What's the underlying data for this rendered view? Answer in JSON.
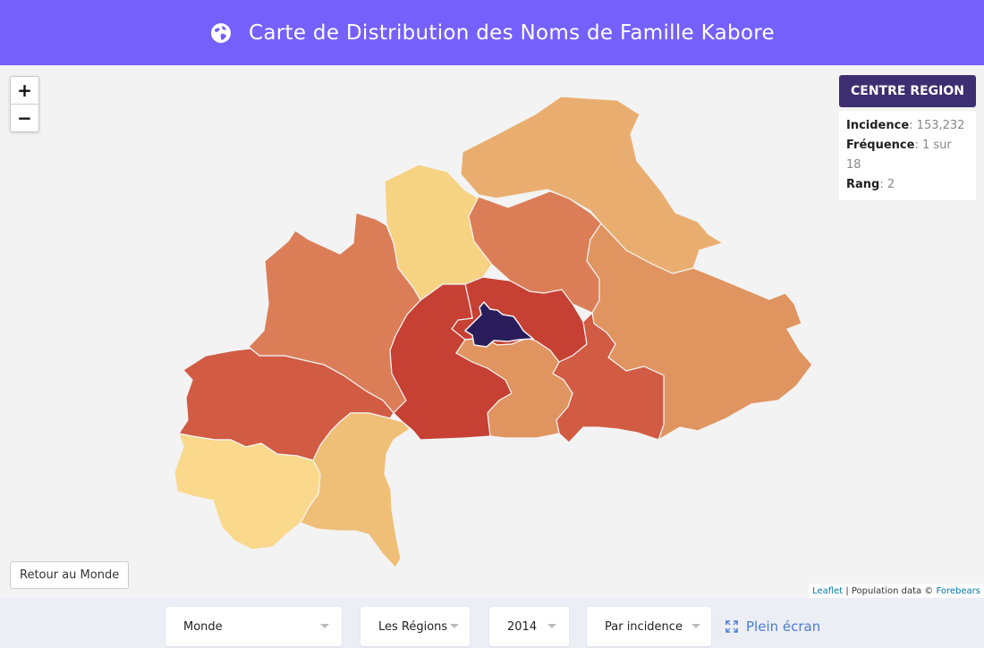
{
  "header": {
    "title": "Carte de Distribution des Noms de Famille Kabore",
    "icon": "globe-icon"
  },
  "map": {
    "zoom_in": "+",
    "zoom_out": "−",
    "back_button": "Retour au Monde",
    "attribution": {
      "leaflet": "Leaflet",
      "separator": " | Population data © ",
      "source": "Forebears"
    },
    "info": {
      "region_name": "CENTRE REGION",
      "incidence_label": "Incidence",
      "incidence_value": "153,232",
      "frequency_label": "Fréquence",
      "frequency_value": "1 sur 18",
      "rank_label": "Rang",
      "rank_value": "2"
    },
    "colors": {
      "highlight": "#2a1b5a",
      "dark_red": "#c64034",
      "red": "#d25b43",
      "orange": "#db7e58",
      "light_orange": "#e0945f",
      "peach": "#e9ae6f",
      "sand": "#efbf77",
      "yellow": "#f6d283",
      "pale_yellow": "#fad98c"
    }
  },
  "controls": {
    "scope": "Monde",
    "level": "Les Régions",
    "year": "2014",
    "metric": "Par incidence",
    "fullscreen": "Plein écran"
  }
}
